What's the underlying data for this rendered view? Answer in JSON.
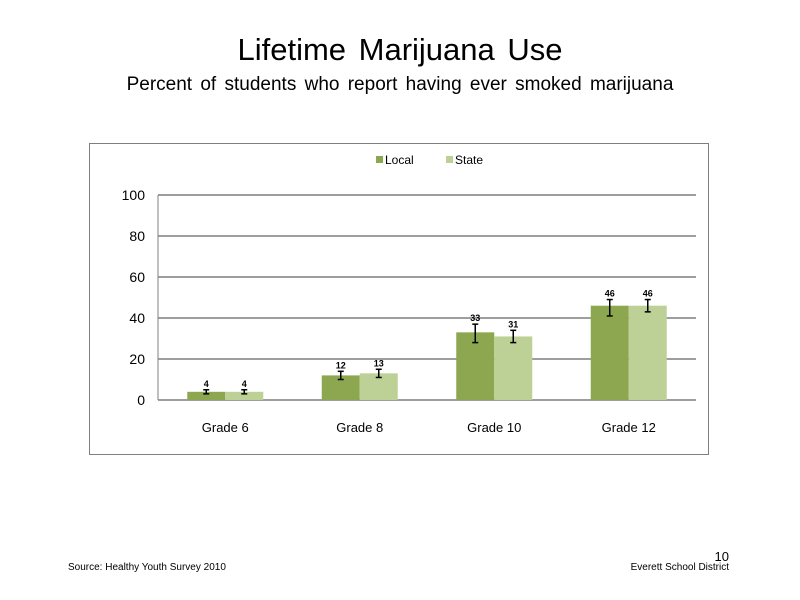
{
  "slide": {
    "title": "Lifetime Marijuana Use",
    "subtitle": "Percent of students who report having ever smoked marijuana",
    "source": "Source: Healthy Youth Survey 2010",
    "organization": "Everett School District",
    "page_number": "10"
  },
  "chart_data": {
    "type": "bar",
    "categories": [
      "Grade 6",
      "Grade 8",
      "Grade 10",
      "Grade 12"
    ],
    "series": [
      {
        "name": "Local",
        "values": [
          4,
          12,
          33,
          46
        ],
        "err_low": [
          3,
          10,
          28,
          41
        ],
        "err_high": [
          5,
          14,
          37,
          49
        ],
        "color": "#8da750"
      },
      {
        "name": "State",
        "values": [
          4,
          13,
          31,
          46
        ],
        "err_low": [
          3,
          11,
          28,
          43
        ],
        "err_high": [
          5,
          15,
          34,
          49
        ],
        "color": "#bdd095"
      }
    ],
    "data_labels": true,
    "ylim": [
      0,
      100
    ],
    "yticks": [
      0,
      20,
      40,
      60,
      80,
      100
    ],
    "grid": true,
    "legend": "top-center"
  }
}
